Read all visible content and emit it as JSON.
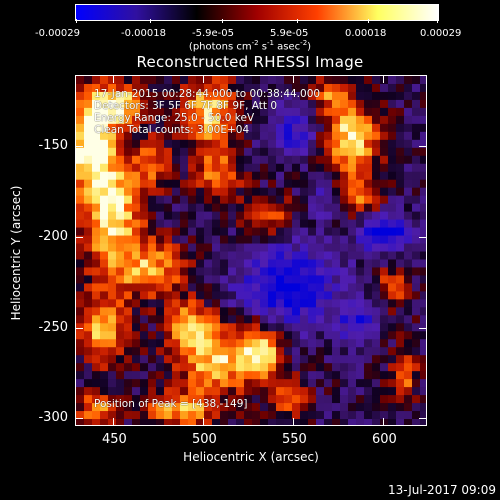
{
  "colorbar": {
    "ticks": [
      "-0.00029",
      "-0.00018",
      "-5.9e-05",
      "5.9e-05",
      "0.00018",
      "0.00029"
    ],
    "units_text": "(photons cm",
    "units_exp1": "-2",
    "units_mid": " s",
    "units_exp2": "-1",
    "units_mid2": " asec",
    "units_exp3": "-2",
    "units_end": ")",
    "colors": [
      "#0000ff",
      "#3010a0",
      "#000000",
      "#a00000",
      "#ff4000",
      "#ffff60",
      "#ffffff"
    ]
  },
  "title": "Reconstructed RHESSI Image",
  "info": {
    "time_range": "17-Jan-2015 00:28:44.000 to 00:38:44.000",
    "detectors": "Detectors: 3F 5F 6F 7F 8F 9F, Att 0",
    "energy": "Energy Range: 25.0 - 50.0 keV",
    "clean": "Clean     Total counts: 3.00E+04",
    "peak": "Position of Peak = [438,-149]"
  },
  "chart_data": {
    "type": "heatmap",
    "title": "Reconstructed RHESSI Image",
    "xlabel": "Heliocentric X (arcsec)",
    "ylabel": "Heliocentric Y (arcsec)",
    "xlim": [
      427,
      622
    ],
    "ylim": [
      -305,
      -110
    ],
    "xticks": [
      "450",
      "500",
      "550",
      "600"
    ],
    "yticks": [
      "-150",
      "-200",
      "-250",
      "-300"
    ],
    "colorbar_range": [
      -0.00029,
      0.00029
    ],
    "peak_position": [
      438,
      -149
    ]
  },
  "footer": {
    "date": "13-Jul-2017 09:09"
  }
}
